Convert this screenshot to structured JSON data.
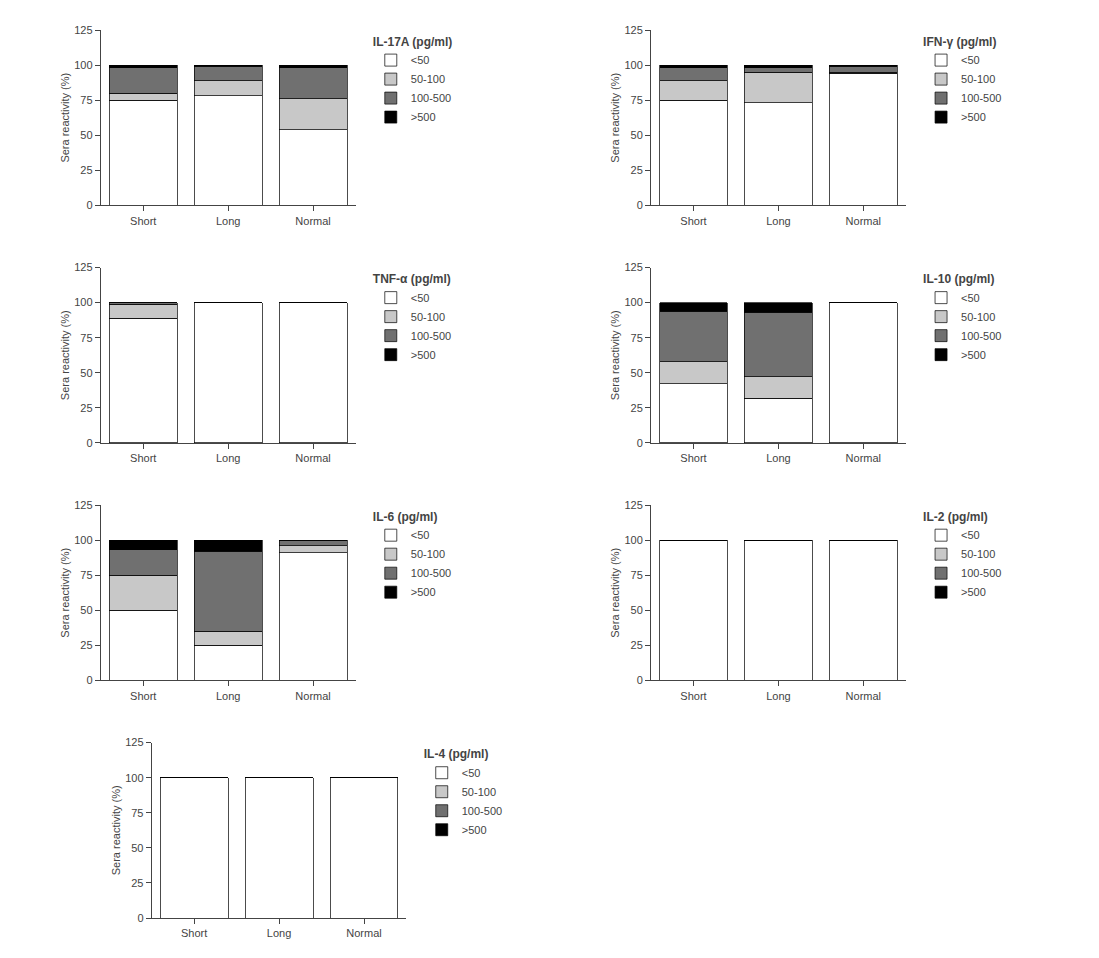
{
  "chart_data": [
    {
      "type": "bar",
      "title": "IL-17A (pg/ml)",
      "categories": [
        "Short",
        "Long",
        "Normal"
      ],
      "series": [
        {
          "name": "<50",
          "color": "#ffffff",
          "values": [
            75,
            78,
            54
          ]
        },
        {
          "name": "50-100",
          "color": "#c8c8c8",
          "values": [
            5,
            11,
            22
          ]
        },
        {
          "name": "100-500",
          "color": "#707070",
          "values": [
            18,
            10,
            22
          ]
        },
        {
          "name": ">500",
          "color": "#000000",
          "values": [
            2,
            1,
            2
          ]
        }
      ],
      "ylabel": "Sera reactivity (%)",
      "ylim": [
        0,
        125
      ],
      "yticks": [
        0,
        25,
        50,
        75,
        100,
        125
      ],
      "stacked": true,
      "grid": false,
      "legend": "right"
    },
    {
      "type": "bar",
      "title": "IFN-γ (pg/ml)",
      "categories": [
        "Short",
        "Long",
        "Normal"
      ],
      "series": [
        {
          "name": "<50",
          "color": "#ffffff",
          "values": [
            75,
            73,
            94
          ]
        },
        {
          "name": "50-100",
          "color": "#c8c8c8",
          "values": [
            14,
            22,
            1
          ]
        },
        {
          "name": "100-500",
          "color": "#707070",
          "values": [
            9,
            3,
            4
          ]
        },
        {
          "name": ">500",
          "color": "#000000",
          "values": [
            2,
            2,
            1
          ]
        }
      ],
      "ylabel": "Sera reactivity (%)",
      "ylim": [
        0,
        125
      ],
      "yticks": [
        0,
        25,
        50,
        75,
        100,
        125
      ],
      "stacked": true,
      "grid": false,
      "legend": "right"
    },
    {
      "type": "bar",
      "title": "TNF-α (pg/ml)",
      "categories": [
        "Short",
        "Long",
        "Normal"
      ],
      "series": [
        {
          "name": "<50",
          "color": "#ffffff",
          "values": [
            89,
            100,
            100
          ]
        },
        {
          "name": "50-100",
          "color": "#c8c8c8",
          "values": [
            10,
            0,
            0
          ]
        },
        {
          "name": "100-500",
          "color": "#707070",
          "values": [
            1,
            0,
            0
          ]
        },
        {
          "name": ">500",
          "color": "#000000",
          "values": [
            0,
            0,
            0
          ]
        }
      ],
      "ylabel": "Sera reactivity (%)",
      "ylim": [
        0,
        125
      ],
      "yticks": [
        0,
        25,
        50,
        75,
        100,
        125
      ],
      "stacked": true,
      "grid": false,
      "legend": "right"
    },
    {
      "type": "bar",
      "title": "IL-10 (pg/ml)",
      "categories": [
        "Short",
        "Long",
        "Normal"
      ],
      "series": [
        {
          "name": "<50",
          "color": "#ffffff",
          "values": [
            42,
            32,
            100
          ]
        },
        {
          "name": "50-100",
          "color": "#c8c8c8",
          "values": [
            16,
            15,
            0
          ]
        },
        {
          "name": "100-500",
          "color": "#707070",
          "values": [
            36,
            46,
            0
          ]
        },
        {
          "name": ">500",
          "color": "#000000",
          "values": [
            6,
            7,
            0
          ]
        }
      ],
      "ylabel": "Sera reactivity (%)",
      "ylim": [
        0,
        125
      ],
      "yticks": [
        0,
        25,
        50,
        75,
        100,
        125
      ],
      "stacked": true,
      "grid": false,
      "legend": "right"
    },
    {
      "type": "bar",
      "title": "IL-6 (pg/ml)",
      "categories": [
        "Short",
        "Long",
        "Normal"
      ],
      "series": [
        {
          "name": "<50",
          "color": "#ffffff",
          "values": [
            50,
            25,
            91
          ]
        },
        {
          "name": "50-100",
          "color": "#c8c8c8",
          "values": [
            25,
            10,
            5
          ]
        },
        {
          "name": "100-500",
          "color": "#707070",
          "values": [
            18,
            57,
            4
          ]
        },
        {
          "name": ">500",
          "color": "#000000",
          "values": [
            7,
            8,
            0
          ]
        }
      ],
      "ylabel": "Sera reactivity (%)",
      "ylim": [
        0,
        125
      ],
      "yticks": [
        0,
        25,
        50,
        75,
        100,
        125
      ],
      "stacked": true,
      "grid": false,
      "legend": "right"
    },
    {
      "type": "bar",
      "title": "IL-2 (pg/ml)",
      "categories": [
        "Short",
        "Long",
        "Normal"
      ],
      "series": [
        {
          "name": "<50",
          "color": "#ffffff",
          "values": [
            100,
            100,
            100
          ]
        },
        {
          "name": "50-100",
          "color": "#c8c8c8",
          "values": [
            0,
            0,
            0
          ]
        },
        {
          "name": "100-500",
          "color": "#707070",
          "values": [
            0,
            0,
            0
          ]
        },
        {
          "name": ">500",
          "color": "#000000",
          "values": [
            0,
            0,
            0
          ]
        }
      ],
      "ylabel": "Sera reactivity (%)",
      "ylim": [
        0,
        125
      ],
      "yticks": [
        0,
        25,
        50,
        75,
        100,
        125
      ],
      "stacked": true,
      "grid": false,
      "legend": "right"
    },
    {
      "type": "bar",
      "title": "IL-4 (pg/ml)",
      "categories": [
        "Short",
        "Long",
        "Normal"
      ],
      "series": [
        {
          "name": "<50",
          "color": "#ffffff",
          "values": [
            100,
            100,
            100
          ]
        },
        {
          "name": "50-100",
          "color": "#c8c8c8",
          "values": [
            0,
            0,
            0
          ]
        },
        {
          "name": "100-500",
          "color": "#707070",
          "values": [
            0,
            0,
            0
          ]
        },
        {
          "name": ">500",
          "color": "#000000",
          "values": [
            0,
            0,
            0
          ]
        }
      ],
      "ylabel": "Sera reactivity (%)",
      "ylim": [
        0,
        125
      ],
      "yticks": [
        0,
        25,
        50,
        75,
        100,
        125
      ],
      "stacked": true,
      "grid": false,
      "legend": "right"
    }
  ]
}
